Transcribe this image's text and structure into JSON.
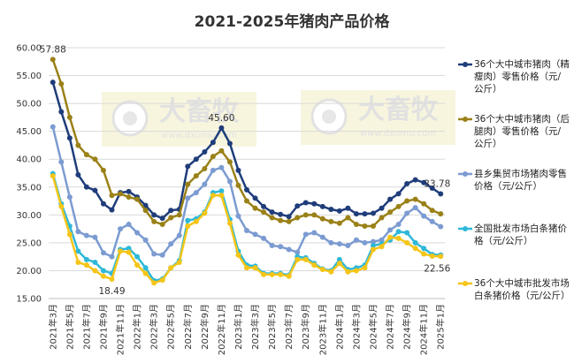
{
  "chart_data": {
    "type": "line",
    "title": "2021-2025年猪肉产品价格",
    "watermark": "大畜牧",
    "watermark_url": "www.dxumu.com",
    "categories": [
      "2021年3月",
      null,
      "2021年5月",
      null,
      "2021年7月",
      null,
      "2021年9月",
      null,
      "2021年11月",
      null,
      "2022年1月",
      null,
      "2022年3月",
      null,
      "2022年5月",
      null,
      "2022年7月",
      null,
      "2022年9月",
      null,
      "2022年11月",
      null,
      "2023年1月",
      null,
      "2023年3月",
      null,
      "2023年5月",
      null,
      "2023年7月",
      null,
      "2023年9月",
      null,
      "2023年11月",
      null,
      "2024年1月",
      null,
      "2024年3月",
      null,
      "2024年5月",
      null,
      "2024年7月",
      null,
      "2024年9月",
      null,
      "2024年11月",
      null,
      "2025年1月"
    ],
    "ylim": [
      15,
      60
    ],
    "yticks": [
      {
        "value": 15,
        "label": "15.00"
      },
      {
        "value": 20,
        "label": "20.00"
      },
      {
        "value": 25,
        "label": "25.00"
      },
      {
        "value": 30,
        "label": "30.00"
      },
      {
        "value": 35,
        "label": "35.00"
      },
      {
        "value": 40,
        "label": "40.00"
      },
      {
        "value": 45,
        "label": "45.00"
      },
      {
        "value": 50,
        "label": "50.00"
      },
      {
        "value": 55,
        "label": "55.00"
      },
      {
        "value": 60,
        "label": "60.00"
      }
    ],
    "grid": true,
    "legend": "right",
    "series": [
      {
        "name": "36个大中城市猪肉（精瘦肉）零售价格（元/公斤）",
        "color": "#1f3d7a",
        "values": [
          53.8,
          48.5,
          43.8,
          37.2,
          35.0,
          34.4,
          32.0,
          30.9,
          34.0,
          34.2,
          33.2,
          31.7,
          30.0,
          29.4,
          30.8,
          31.0,
          38.7,
          40.0,
          41.3,
          43.0,
          45.6,
          42.8,
          38.0,
          34.5,
          33.0,
          31.5,
          30.5,
          30.1,
          29.7,
          31.6,
          32.2,
          32.0,
          31.5,
          31.0,
          30.7,
          31.2,
          30.2,
          30.2,
          30.3,
          31.2,
          32.8,
          33.8,
          35.6,
          36.3,
          35.8,
          34.8,
          33.78
        ],
        "value_labels": [
          null,
          null,
          null,
          null,
          null,
          null,
          null,
          null,
          null,
          null,
          null,
          null,
          null,
          null,
          null,
          null,
          null,
          null,
          null,
          null,
          "45.60",
          null,
          null,
          null,
          null,
          null,
          null,
          null,
          null,
          null,
          null,
          null,
          null,
          null,
          null,
          null,
          null,
          null,
          null,
          null,
          null,
          null,
          null,
          null,
          null,
          null,
          "33.78"
        ]
      },
      {
        "name": "36个大中城市猪肉（后腿肉）零售价格（元/公斤）",
        "color": "#9a8118",
        "values": [
          57.88,
          53.5,
          47.5,
          42.5,
          40.8,
          40.0,
          38.0,
          33.5,
          33.8,
          33.2,
          32.8,
          30.8,
          28.8,
          28.3,
          29.5,
          30.0,
          35.5,
          37.0,
          38.3,
          40.5,
          41.5,
          39.5,
          35.3,
          32.5,
          31.2,
          30.5,
          29.5,
          29.0,
          28.8,
          29.5,
          30.0,
          30.0,
          29.3,
          28.8,
          28.5,
          29.5,
          28.3,
          28.0,
          28.0,
          29.5,
          30.5,
          31.5,
          32.5,
          32.8,
          32.0,
          30.8,
          30.2
        ],
        "value_labels": [
          "57.88",
          null,
          null,
          null,
          null,
          null,
          null,
          null,
          null,
          null,
          null,
          null,
          null,
          null,
          null,
          null,
          null,
          null,
          null,
          null,
          null,
          null,
          null,
          null,
          null,
          null,
          null,
          null,
          null,
          null,
          null,
          null,
          null,
          null,
          null,
          null,
          null,
          null,
          null,
          null,
          null,
          null,
          null,
          null,
          null,
          null,
          null
        ]
      },
      {
        "name": "县乡集贸市场猪肉零售价格（元/公斤）",
        "color": "#7b9bd1",
        "values": [
          45.8,
          39.5,
          33.2,
          27.0,
          26.3,
          26.0,
          23.2,
          22.5,
          27.5,
          28.3,
          26.8,
          25.5,
          23.0,
          22.8,
          24.8,
          26.3,
          33.0,
          34.0,
          35.5,
          38.0,
          38.5,
          36.0,
          29.8,
          27.2,
          26.5,
          25.8,
          24.5,
          24.3,
          23.8,
          23.3,
          26.5,
          26.8,
          26.0,
          25.0,
          24.8,
          24.5,
          25.5,
          25.0,
          25.2,
          25.5,
          27.3,
          28.3,
          30.3,
          31.3,
          29.8,
          28.8,
          27.9
        ]
      },
      {
        "name": "全国批发市场白条猪价格（元/公斤）",
        "color": "#2eb8d8",
        "values": [
          37.4,
          32.0,
          28.0,
          23.5,
          22.0,
          21.5,
          20.0,
          19.5,
          23.8,
          24.0,
          22.5,
          20.5,
          18.2,
          18.5,
          20.5,
          21.8,
          29.0,
          29.3,
          30.5,
          34.0,
          34.3,
          29.2,
          23.5,
          21.0,
          20.8,
          19.5,
          19.5,
          19.5,
          19.2,
          22.5,
          22.3,
          21.3,
          20.3,
          20.0,
          22.0,
          20.2,
          20.5,
          21.0,
          24.5,
          24.8,
          25.5,
          27.0,
          26.8,
          25.0,
          24.0,
          22.9,
          22.8
        ]
      },
      {
        "name": "36个大中城市批发市场白条猪价格（元/公斤）",
        "color": "#f5c518",
        "values": [
          37.0,
          31.5,
          26.5,
          21.5,
          21.0,
          20.0,
          19.0,
          18.49,
          23.5,
          23.3,
          21.0,
          19.5,
          17.8,
          18.3,
          20.5,
          21.5,
          28.0,
          28.8,
          30.3,
          33.5,
          33.5,
          28.5,
          22.8,
          20.5,
          20.5,
          19.3,
          19.3,
          19.3,
          19.0,
          22.0,
          22.0,
          21.0,
          20.2,
          19.8,
          21.3,
          19.8,
          20.0,
          20.5,
          23.8,
          24.3,
          26.0,
          25.8,
          25.0,
          24.0,
          23.0,
          22.6,
          22.56
        ],
        "value_labels": [
          null,
          null,
          null,
          null,
          null,
          null,
          null,
          "18.49",
          null,
          null,
          null,
          null,
          null,
          null,
          null,
          null,
          null,
          null,
          null,
          null,
          null,
          null,
          null,
          null,
          null,
          null,
          null,
          null,
          null,
          null,
          null,
          null,
          null,
          null,
          null,
          null,
          null,
          null,
          null,
          null,
          null,
          null,
          null,
          null,
          null,
          null,
          "22.56"
        ]
      }
    ]
  }
}
